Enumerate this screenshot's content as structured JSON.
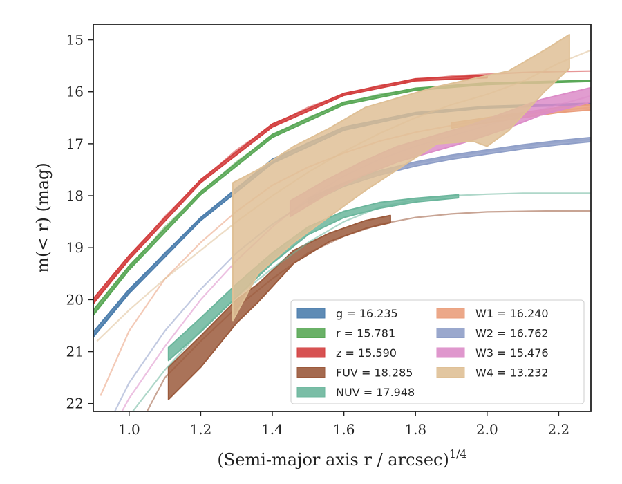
{
  "chart_data": {
    "type": "line",
    "xlabel": "(Semi-major axis r / arcsec)",
    "xlabel_sup": "1/4",
    "ylabel": "m(< r) (mag)",
    "xlim": [
      0.9,
      2.29
    ],
    "ylim": [
      22.15,
      14.7
    ],
    "y_inverted": true,
    "x_ticks": [
      1.0,
      1.2,
      1.4,
      1.6,
      1.8,
      2.0,
      2.2
    ],
    "x_tick_labels": [
      "1.0",
      "1.2",
      "1.4",
      "1.6",
      "1.8",
      "2.0",
      "2.2"
    ],
    "y_ticks": [
      15,
      16,
      17,
      18,
      19,
      20,
      21,
      22
    ],
    "y_tick_labels": [
      "15",
      "16",
      "17",
      "18",
      "19",
      "20",
      "21",
      "22"
    ],
    "legend_position": "lower-right",
    "series": [
      {
        "name": "g = 16.235",
        "symbol": "g",
        "value": "16.235",
        "color": "#4c7ead",
        "model": [
          [
            0.9,
            20.7
          ],
          [
            1.0,
            19.85
          ],
          [
            1.1,
            19.1
          ],
          [
            1.2,
            18.45
          ],
          [
            1.3,
            17.85
          ],
          [
            1.4,
            17.35
          ],
          [
            1.5,
            16.98
          ],
          [
            1.6,
            16.72
          ],
          [
            1.7,
            16.55
          ],
          [
            1.8,
            16.42
          ],
          [
            1.9,
            16.34
          ],
          [
            2.0,
            16.29
          ],
          [
            2.1,
            16.26
          ],
          [
            2.2,
            16.24
          ],
          [
            2.29,
            16.23
          ]
        ],
        "data_upper": [
          [
            0.9,
            20.62
          ],
          [
            1.0,
            19.8
          ],
          [
            1.2,
            18.42
          ],
          [
            1.4,
            17.3
          ],
          [
            1.6,
            16.68
          ],
          [
            1.8,
            16.4
          ],
          [
            2.0,
            16.28
          ],
          [
            2.29,
            16.22
          ]
        ],
        "data_lower": [
          [
            0.9,
            20.72
          ],
          [
            1.0,
            19.88
          ],
          [
            1.2,
            18.48
          ],
          [
            1.4,
            17.38
          ],
          [
            1.6,
            16.74
          ],
          [
            1.8,
            16.44
          ],
          [
            2.0,
            16.31
          ],
          [
            2.29,
            16.25
          ]
        ]
      },
      {
        "name": "r = 15.781",
        "symbol": "r",
        "value": "15.781",
        "color": "#5aa857",
        "model": [
          [
            0.9,
            20.28
          ],
          [
            1.0,
            19.4
          ],
          [
            1.1,
            18.6
          ],
          [
            1.2,
            17.95
          ],
          [
            1.3,
            17.35
          ],
          [
            1.4,
            16.85
          ],
          [
            1.5,
            16.5
          ],
          [
            1.6,
            16.22
          ],
          [
            1.7,
            16.05
          ],
          [
            1.8,
            15.95
          ],
          [
            1.9,
            15.88
          ],
          [
            2.0,
            15.84
          ],
          [
            2.1,
            15.81
          ],
          [
            2.2,
            15.8
          ],
          [
            2.29,
            15.79
          ]
        ],
        "data_upper": [
          [
            0.9,
            20.2
          ],
          [
            1.0,
            19.35
          ],
          [
            1.2,
            17.92
          ],
          [
            1.4,
            16.82
          ],
          [
            1.6,
            16.2
          ],
          [
            1.8,
            15.93
          ],
          [
            2.0,
            15.83
          ],
          [
            2.29,
            15.78
          ]
        ],
        "data_lower": [
          [
            0.9,
            20.3
          ],
          [
            1.0,
            19.43
          ],
          [
            1.2,
            17.98
          ],
          [
            1.4,
            16.88
          ],
          [
            1.6,
            16.25
          ],
          [
            1.8,
            15.97
          ],
          [
            2.0,
            15.86
          ],
          [
            2.29,
            15.8
          ]
        ]
      },
      {
        "name": "z = 15.590",
        "symbol": "z",
        "value": "15.590",
        "color": "#d33f3f",
        "model": [
          [
            0.9,
            20.05
          ],
          [
            1.0,
            19.2
          ],
          [
            1.1,
            18.4
          ],
          [
            1.2,
            17.72
          ],
          [
            1.3,
            17.12
          ],
          [
            1.4,
            16.65
          ],
          [
            1.5,
            16.3
          ],
          [
            1.6,
            16.05
          ],
          [
            1.7,
            15.88
          ],
          [
            1.8,
            15.77
          ],
          [
            1.9,
            15.7
          ],
          [
            2.0,
            15.66
          ],
          [
            2.1,
            15.63
          ],
          [
            2.2,
            15.61
          ],
          [
            2.29,
            15.6
          ]
        ],
        "data_upper": [
          [
            0.9,
            19.98
          ],
          [
            1.0,
            19.15
          ],
          [
            1.2,
            17.69
          ],
          [
            1.4,
            16.62
          ],
          [
            1.6,
            16.03
          ],
          [
            1.8,
            15.75
          ],
          [
            2.0,
            15.68
          ]
        ],
        "data_lower": [
          [
            0.9,
            20.08
          ],
          [
            1.0,
            19.23
          ],
          [
            1.2,
            17.75
          ],
          [
            1.4,
            16.68
          ],
          [
            1.6,
            16.07
          ],
          [
            1.8,
            15.79
          ],
          [
            2.0,
            15.73
          ]
        ]
      },
      {
        "name": "FUV = 18.285",
        "symbol": "FUV",
        "value": "18.285",
        "color": "#9b5a3c",
        "model": [
          [
            1.05,
            22.15
          ],
          [
            1.1,
            21.5
          ],
          [
            1.2,
            20.8
          ],
          [
            1.3,
            20.15
          ],
          [
            1.4,
            19.6
          ],
          [
            1.5,
            19.1
          ],
          [
            1.6,
            18.78
          ],
          [
            1.7,
            18.55
          ],
          [
            1.8,
            18.42
          ],
          [
            1.9,
            18.35
          ],
          [
            2.0,
            18.31
          ],
          [
            2.1,
            18.3
          ],
          [
            2.2,
            18.29
          ],
          [
            2.29,
            18.29
          ]
        ],
        "data_upper": [
          [
            1.11,
            21.3
          ],
          [
            1.2,
            20.7
          ],
          [
            1.3,
            20.0
          ],
          [
            1.36,
            19.7
          ],
          [
            1.46,
            19.05
          ],
          [
            1.56,
            18.72
          ],
          [
            1.66,
            18.48
          ],
          [
            1.73,
            18.38
          ]
        ],
        "data_lower": [
          [
            1.11,
            21.92
          ],
          [
            1.2,
            21.3
          ],
          [
            1.3,
            20.45
          ],
          [
            1.36,
            20.05
          ],
          [
            1.46,
            19.3
          ],
          [
            1.56,
            18.88
          ],
          [
            1.66,
            18.63
          ],
          [
            1.73,
            18.52
          ]
        ]
      },
      {
        "name": "NUV = 17.948",
        "symbol": "NUV",
        "value": "17.948",
        "color": "#6bb69c",
        "model": [
          [
            1.01,
            22.15
          ],
          [
            1.1,
            21.35
          ],
          [
            1.2,
            20.6
          ],
          [
            1.3,
            19.95
          ],
          [
            1.4,
            19.4
          ],
          [
            1.5,
            18.9
          ],
          [
            1.6,
            18.5
          ],
          [
            1.7,
            18.22
          ],
          [
            1.8,
            18.08
          ],
          [
            1.9,
            18.0
          ],
          [
            2.0,
            17.97
          ],
          [
            2.1,
            17.95
          ],
          [
            2.2,
            17.95
          ],
          [
            2.29,
            17.95
          ]
        ],
        "data_upper": [
          [
            1.11,
            20.92
          ],
          [
            1.2,
            20.35
          ],
          [
            1.3,
            19.7
          ],
          [
            1.4,
            19.1
          ],
          [
            1.5,
            18.6
          ],
          [
            1.6,
            18.3
          ],
          [
            1.7,
            18.13
          ],
          [
            1.8,
            18.05
          ],
          [
            1.92,
            17.98
          ]
        ],
        "data_lower": [
          [
            1.11,
            21.17
          ],
          [
            1.2,
            20.62
          ],
          [
            1.3,
            19.95
          ],
          [
            1.4,
            19.3
          ],
          [
            1.5,
            18.75
          ],
          [
            1.6,
            18.42
          ],
          [
            1.7,
            18.24
          ],
          [
            1.8,
            18.12
          ],
          [
            1.92,
            18.04
          ]
        ]
      },
      {
        "name": "W1 = 16.240",
        "symbol": "W1",
        "value": "16.240",
        "color": "#ea9e7c",
        "model": [
          [
            0.92,
            21.85
          ],
          [
            1.0,
            20.6
          ],
          [
            1.1,
            19.6
          ],
          [
            1.2,
            18.9
          ],
          [
            1.3,
            18.3
          ],
          [
            1.4,
            17.8
          ],
          [
            1.5,
            17.45
          ],
          [
            1.6,
            17.18
          ],
          [
            1.7,
            16.95
          ],
          [
            1.8,
            16.78
          ],
          [
            1.9,
            16.65
          ],
          [
            2.0,
            16.53
          ],
          [
            2.1,
            16.43
          ],
          [
            2.2,
            16.36
          ],
          [
            2.29,
            16.3
          ]
        ],
        "data_upper": [
          [
            1.9,
            16.6
          ],
          [
            2.0,
            16.5
          ],
          [
            2.1,
            16.4
          ],
          [
            2.2,
            16.3
          ],
          [
            2.29,
            16.25
          ]
        ],
        "data_lower": [
          [
            1.9,
            16.7
          ],
          [
            2.0,
            16.6
          ],
          [
            2.1,
            16.5
          ],
          [
            2.2,
            16.4
          ],
          [
            2.29,
            16.35
          ]
        ]
      },
      {
        "name": "W2 = 16.762",
        "symbol": "W2",
        "value": "16.762",
        "color": "#8f9fc8",
        "model": [
          [
            0.96,
            22.15
          ],
          [
            1.0,
            21.6
          ],
          [
            1.1,
            20.6
          ],
          [
            1.2,
            19.8
          ],
          [
            1.3,
            19.1
          ],
          [
            1.4,
            18.55
          ],
          [
            1.5,
            18.1
          ],
          [
            1.6,
            17.78
          ],
          [
            1.7,
            17.55
          ],
          [
            1.8,
            17.38
          ],
          [
            1.9,
            17.25
          ],
          [
            2.0,
            17.15
          ],
          [
            2.1,
            17.05
          ],
          [
            2.2,
            16.97
          ],
          [
            2.29,
            16.92
          ]
        ],
        "data_upper": [
          [
            1.5,
            18.05
          ],
          [
            1.6,
            17.75
          ],
          [
            1.7,
            17.52
          ],
          [
            1.8,
            17.35
          ],
          [
            1.9,
            17.22
          ],
          [
            2.0,
            17.12
          ],
          [
            2.1,
            17.02
          ],
          [
            2.2,
            16.94
          ],
          [
            2.29,
            16.88
          ]
        ],
        "data_lower": [
          [
            1.5,
            18.15
          ],
          [
            1.6,
            17.82
          ],
          [
            1.7,
            17.6
          ],
          [
            1.8,
            17.43
          ],
          [
            1.9,
            17.3
          ],
          [
            2.0,
            17.2
          ],
          [
            2.1,
            17.1
          ],
          [
            2.2,
            17.02
          ],
          [
            2.29,
            16.96
          ]
        ]
      },
      {
        "name": "W3 = 15.476",
        "symbol": "W3",
        "value": "15.476",
        "color": "#dc8cc8",
        "model": [
          [
            0.98,
            22.15
          ],
          [
            1.0,
            21.9
          ],
          [
            1.1,
            20.9
          ],
          [
            1.2,
            20.0
          ],
          [
            1.3,
            19.25
          ],
          [
            1.4,
            18.6
          ],
          [
            1.5,
            18.05
          ],
          [
            1.6,
            17.62
          ],
          [
            1.7,
            17.3
          ],
          [
            1.8,
            17.05
          ],
          [
            1.9,
            16.85
          ],
          [
            2.0,
            16.65
          ],
          [
            2.1,
            16.45
          ],
          [
            2.2,
            16.25
          ],
          [
            2.29,
            16.08
          ]
        ],
        "data_upper": [
          [
            1.45,
            18.1
          ],
          [
            1.55,
            17.7
          ],
          [
            1.65,
            17.35
          ],
          [
            1.75,
            17.05
          ],
          [
            1.85,
            16.85
          ],
          [
            1.95,
            16.65
          ],
          [
            2.05,
            16.4
          ],
          [
            2.15,
            16.15
          ],
          [
            2.29,
            15.92
          ]
        ],
        "data_lower": [
          [
            1.45,
            18.4
          ],
          [
            1.55,
            17.98
          ],
          [
            1.65,
            17.62
          ],
          [
            1.75,
            17.35
          ],
          [
            1.85,
            17.15
          ],
          [
            1.95,
            16.95
          ],
          [
            2.05,
            16.72
          ],
          [
            2.15,
            16.45
          ],
          [
            2.29,
            16.2
          ]
        ]
      },
      {
        "name": "W4 = 13.232",
        "symbol": "W4",
        "value": "13.232",
        "color": "#dfc096",
        "model": [
          [
            0.91,
            20.8
          ],
          [
            1.0,
            20.2
          ],
          [
            1.1,
            19.6
          ],
          [
            1.2,
            19.05
          ],
          [
            1.3,
            18.5
          ],
          [
            1.4,
            18.0
          ],
          [
            1.5,
            17.55
          ],
          [
            1.6,
            17.15
          ],
          [
            1.7,
            16.8
          ],
          [
            1.8,
            16.5
          ],
          [
            1.9,
            16.25
          ],
          [
            2.0,
            16.05
          ],
          [
            2.1,
            15.8
          ],
          [
            2.2,
            15.45
          ],
          [
            2.29,
            15.2
          ]
        ],
        "data_upper": [
          [
            1.29,
            17.75
          ],
          [
            1.36,
            17.5
          ],
          [
            1.46,
            17.05
          ],
          [
            1.56,
            16.7
          ],
          [
            1.66,
            16.3
          ],
          [
            1.76,
            16.1
          ],
          [
            1.86,
            15.9
          ],
          [
            1.96,
            15.75
          ],
          [
            2.06,
            15.6
          ],
          [
            2.16,
            15.2
          ],
          [
            2.23,
            14.9
          ]
        ],
        "data_lower": [
          [
            1.29,
            20.4
          ],
          [
            1.36,
            19.5
          ],
          [
            1.46,
            18.9
          ],
          [
            1.56,
            18.4
          ],
          [
            1.66,
            17.9
          ],
          [
            1.76,
            17.45
          ],
          [
            1.86,
            17.0
          ],
          [
            1.96,
            16.95
          ],
          [
            2.0,
            17.05
          ],
          [
            2.06,
            16.75
          ],
          [
            2.16,
            16.0
          ],
          [
            2.23,
            15.55
          ]
        ]
      }
    ]
  }
}
